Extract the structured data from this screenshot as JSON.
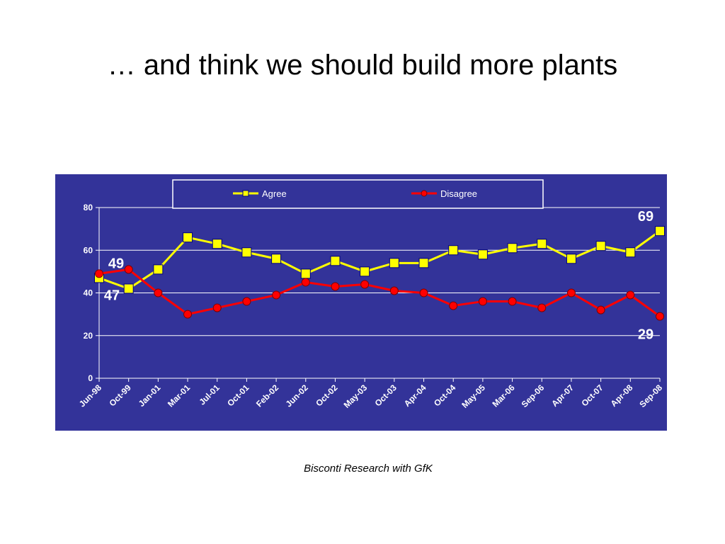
{
  "slide": {
    "title": "… and think we should build more plants",
    "source": "Bisconti Research with GfK"
  },
  "colors": {
    "plot_background": "#333399",
    "agree": "#ffff00",
    "disagree": "#ff0000",
    "text": "#ffffff",
    "gridline": "#ffffff"
  },
  "chart_data": {
    "type": "line",
    "title": "",
    "xlabel": "",
    "ylabel": "",
    "ylim": [
      0,
      80
    ],
    "yticks": [
      0,
      20,
      40,
      60,
      80
    ],
    "grid": true,
    "legend": "top",
    "categories": [
      "Jun-98",
      "Oct-99",
      "Jan-01",
      "Mar-01",
      "Jul-01",
      "Oct-01",
      "Feb-02",
      "Jun-02",
      "Oct-02",
      "May-03",
      "Oct-03",
      "Apr-04",
      "Oct-04",
      "May-05",
      "Mar-06",
      "Sep-06",
      "Apr-07",
      "Oct-07",
      "Apr-08",
      "Sep-08"
    ],
    "series": [
      {
        "name": "Agree",
        "marker": "square",
        "values": [
          47,
          42,
          51,
          66,
          63,
          59,
          56,
          49,
          55,
          50,
          54,
          54,
          60,
          58,
          61,
          63,
          56,
          62,
          59,
          69
        ]
      },
      {
        "name": "Disagree",
        "marker": "circle",
        "values": [
          49,
          51,
          40,
          30,
          33,
          36,
          39,
          45,
          43,
          44,
          41,
          40,
          34,
          36,
          36,
          33,
          40,
          32,
          39,
          29
        ]
      }
    ],
    "annotations": [
      {
        "text": "49",
        "series": "Disagree",
        "index": 0
      },
      {
        "text": "47",
        "series": "Agree",
        "index": 0
      },
      {
        "text": "69",
        "series": "Agree",
        "index": 19
      },
      {
        "text": "29",
        "series": "Disagree",
        "index": 19
      }
    ]
  }
}
